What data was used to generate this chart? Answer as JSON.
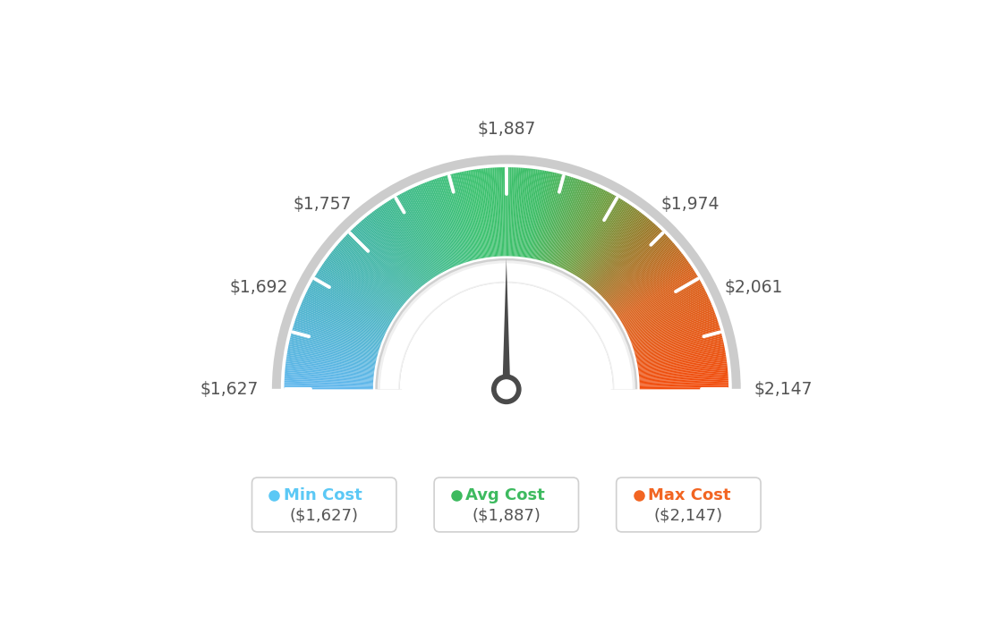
{
  "min_val": 1627,
  "max_val": 2147,
  "avg_val": 1887,
  "label_values": [
    1627,
    1692,
    1757,
    1887,
    1974,
    2061,
    2147
  ],
  "legend": [
    {
      "label": "Min Cost",
      "value": "($1,627)",
      "dot_color": "#5bc8f5"
    },
    {
      "label": "Avg Cost",
      "value": "($1,887)",
      "dot_color": "#3dba5f"
    },
    {
      "label": "Max Cost",
      "value": "($2,147)",
      "dot_color": "#f26522"
    }
  ],
  "bg_color": "#ffffff",
  "needle_value": 1887,
  "gradient_colors": [
    [
      0.0,
      [
        0.38,
        0.72,
        0.93
      ]
    ],
    [
      0.15,
      [
        0.29,
        0.7,
        0.78
      ]
    ],
    [
      0.3,
      [
        0.24,
        0.72,
        0.58
      ]
    ],
    [
      0.45,
      [
        0.24,
        0.76,
        0.44
      ]
    ],
    [
      0.55,
      [
        0.24,
        0.74,
        0.4
      ]
    ],
    [
      0.65,
      [
        0.42,
        0.62,
        0.25
      ]
    ],
    [
      0.73,
      [
        0.6,
        0.47,
        0.15
      ]
    ],
    [
      0.82,
      [
        0.85,
        0.38,
        0.1
      ]
    ],
    [
      1.0,
      [
        0.95,
        0.3,
        0.05
      ]
    ]
  ]
}
